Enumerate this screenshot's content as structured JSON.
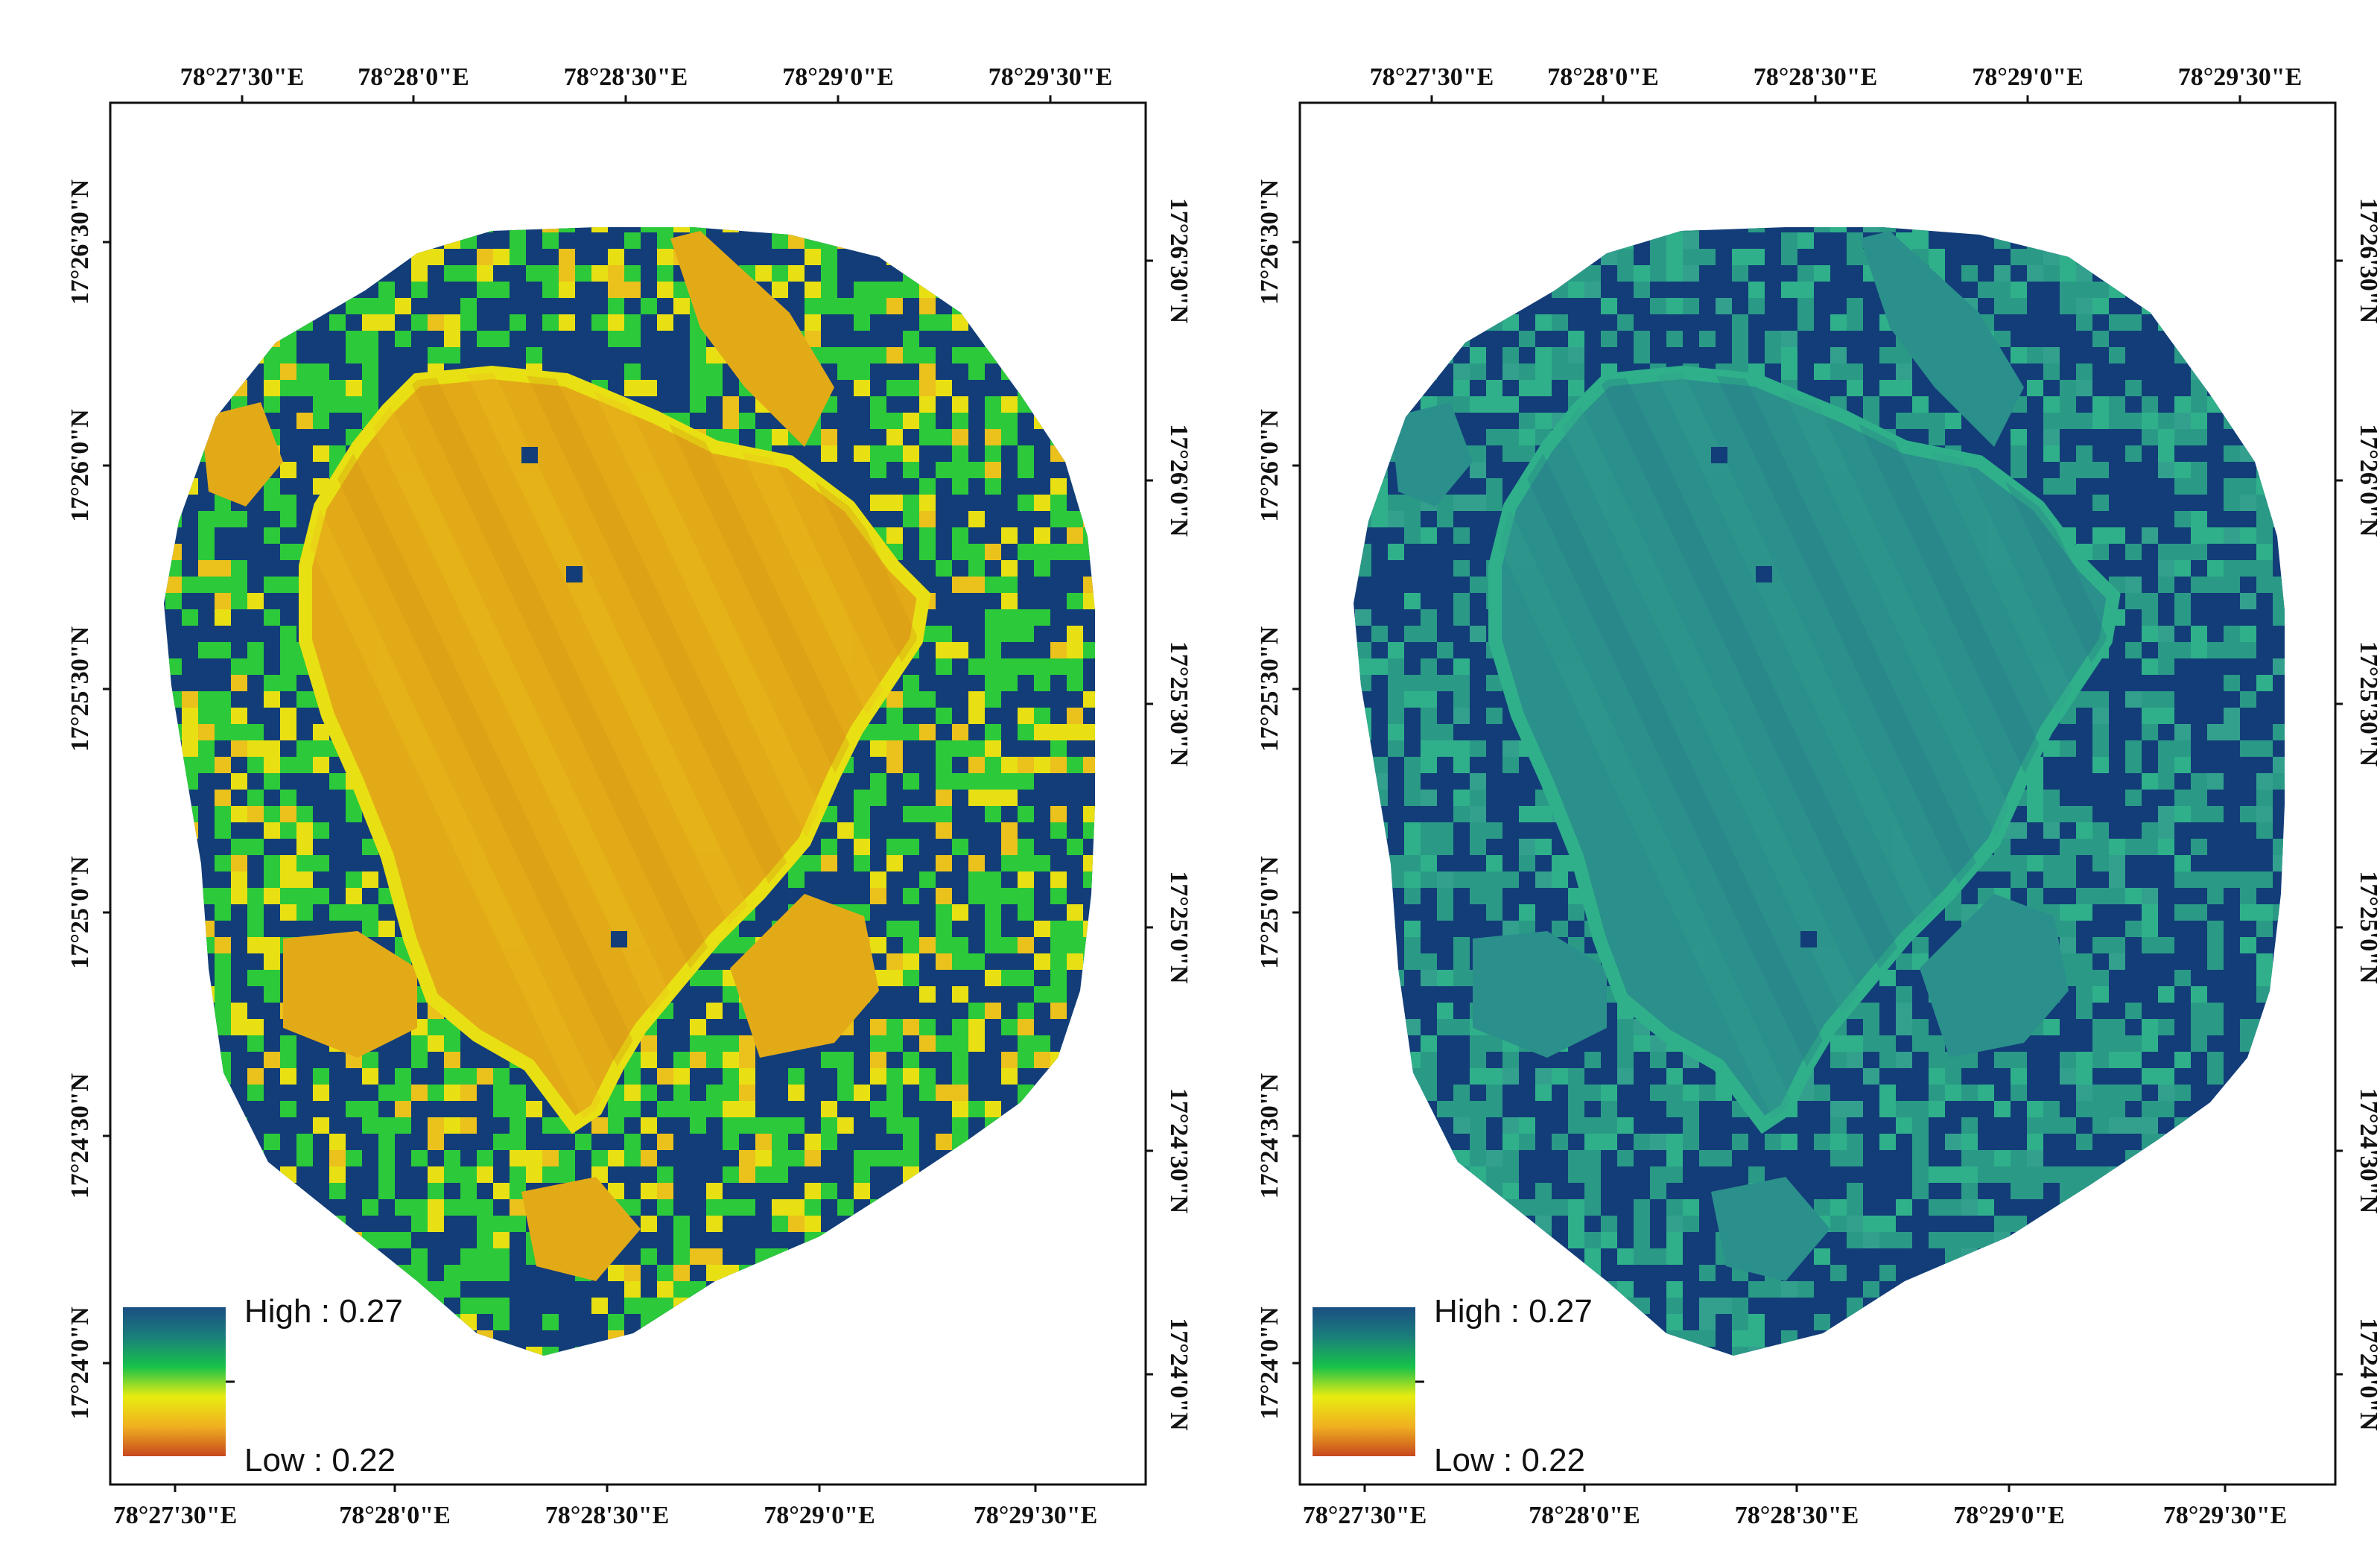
{
  "panels": [
    {
      "name": "left",
      "top_ticks": [
        "78°27'30\"E",
        "78°28'0\"E",
        "78°28'30\"E",
        "78°29'0\"E",
        "78°29'30\"E"
      ],
      "bottom_ticks": [
        "78°27'30\"E",
        "78°28'0\"E",
        "78°28'30\"E",
        "78°29'0\"E",
        "78°29'30\"E"
      ],
      "left_ticks": [
        "17°26'30\"N",
        "17°26'0\"N",
        "17°25'30\"N",
        "17°25'0\"N",
        "17°24'30\"N",
        "17°24'0\"N"
      ],
      "right_ticks": [
        "17°26'30\"N",
        "17°26'0\"N",
        "17°25'30\"N",
        "17°25'0\"N",
        "17°24'30\"N",
        "17°24'0\"N"
      ],
      "legend": {
        "high": "High : 0.27",
        "low": "Low : 0.22"
      },
      "colors": {
        "outer": "#123d78",
        "ring_light": "#2cc93a",
        "ring_yellow": "#e8e013",
        "lake": "#e3aa17",
        "lake_dark": "#d49514",
        "lake_light": "#ebc11c"
      }
    },
    {
      "name": "right",
      "top_ticks": [
        "78°27'30\"E",
        "78°28'0\"E",
        "78°28'30\"E",
        "78°29'0\"E",
        "78°29'30\"E"
      ],
      "bottom_ticks": [
        "78°27'30\"E",
        "78°28'0\"E",
        "78°28'30\"E",
        "78°29'0\"E",
        "78°29'30\"E"
      ],
      "left_ticks": [
        "17°26'30\"N",
        "17°26'0\"N",
        "17°25'30\"N",
        "17°25'0\"N",
        "17°24'30\"N",
        "17°24'0\"N"
      ],
      "right_ticks": [
        "17°26'30\"N",
        "17°26'0\"N",
        "17°25'30\"N",
        "17°25'0\"N",
        "17°24'30\"N",
        "17°24'0\"N"
      ],
      "legend": {
        "high": "High : 0.27",
        "low": "Low : 0.22"
      },
      "colors": {
        "outer": "#123d78",
        "ring_light": "#2a9a86",
        "ring_yellow": "#2fb08a",
        "lake": "#2b8f8c",
        "lake_dark": "#267d86",
        "lake_light": "#33a08e"
      }
    }
  ],
  "legend_ramp": [
    "#1a4f84",
    "#1a7f7a",
    "#18c24a",
    "#e8ec10",
    "#f0b020",
    "#c8481e"
  ]
}
